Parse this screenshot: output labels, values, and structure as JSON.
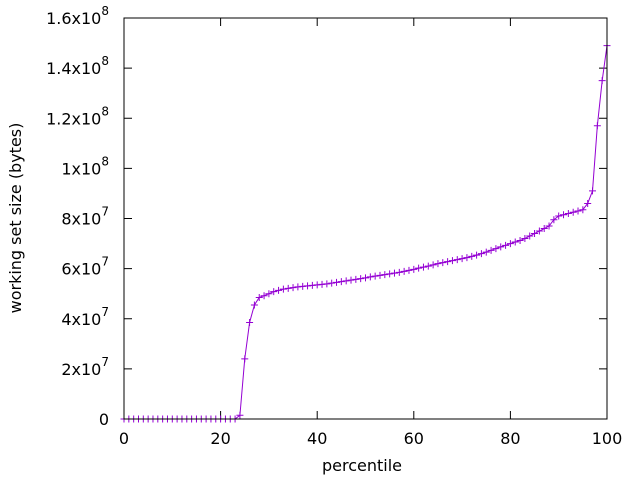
{
  "chart_data": {
    "type": "line",
    "xlabel": "percentile",
    "ylabel": "working set size (bytes)",
    "xlim": [
      0,
      100
    ],
    "ylim": [
      0,
      160000000
    ],
    "x_ticks": [
      {
        "value": 0,
        "label": "0"
      },
      {
        "value": 20,
        "label": "20"
      },
      {
        "value": 40,
        "label": "40"
      },
      {
        "value": 60,
        "label": "60"
      },
      {
        "value": 80,
        "label": "80"
      },
      {
        "value": 100,
        "label": "100"
      }
    ],
    "y_ticks": [
      {
        "value": 0,
        "mantissa": "0",
        "exponent": ""
      },
      {
        "value": 20000000,
        "mantissa": "2x10",
        "exponent": "7"
      },
      {
        "value": 40000000,
        "mantissa": "4x10",
        "exponent": "7"
      },
      {
        "value": 60000000,
        "mantissa": "6x10",
        "exponent": "7"
      },
      {
        "value": 80000000,
        "mantissa": "8x10",
        "exponent": "7"
      },
      {
        "value": 100000000,
        "mantissa": "1x10",
        "exponent": "8"
      },
      {
        "value": 120000000,
        "mantissa": "1.2x10",
        "exponent": "8"
      },
      {
        "value": 140000000,
        "mantissa": "1.4x10",
        "exponent": "8"
      },
      {
        "value": 160000000,
        "mantissa": "1.6x10",
        "exponent": "8"
      }
    ],
    "grid": false,
    "marker": "plus",
    "color": "#9400d3",
    "series": [
      {
        "x": [
          0,
          1,
          2,
          3,
          4,
          5,
          6,
          7,
          8,
          9,
          10,
          11,
          12,
          13,
          14,
          15,
          16,
          17,
          18,
          19,
          20,
          21,
          22,
          23,
          24,
          25,
          26,
          27,
          28,
          29,
          30,
          31,
          32,
          33,
          34,
          35,
          36,
          37,
          38,
          39,
          40,
          41,
          42,
          43,
          44,
          45,
          46,
          47,
          48,
          49,
          50,
          51,
          52,
          53,
          54,
          55,
          56,
          57,
          58,
          59,
          60,
          61,
          62,
          63,
          64,
          65,
          66,
          67,
          68,
          69,
          70,
          71,
          72,
          73,
          74,
          75,
          76,
          77,
          78,
          79,
          80,
          81,
          82,
          83,
          84,
          85,
          86,
          87,
          88,
          89,
          90,
          91,
          92,
          93,
          94,
          95,
          96,
          97,
          98,
          99,
          100
        ],
        "y": [
          0,
          0,
          0,
          0,
          0,
          0,
          0,
          0,
          0,
          0,
          0,
          0,
          0,
          0,
          0,
          0,
          0,
          0,
          0,
          0,
          0,
          0,
          0,
          0,
          1500000,
          24000000,
          38500000,
          45500000,
          48500000,
          49200000,
          50000000,
          50800000,
          51300000,
          51800000,
          52100000,
          52400000,
          52700000,
          52900000,
          53100000,
          53300000,
          53500000,
          53700000,
          53900000,
          54200000,
          54500000,
          54800000,
          55100000,
          55400000,
          55700000,
          56000000,
          56300000,
          56700000,
          57000000,
          57300000,
          57600000,
          57900000,
          58200000,
          58500000,
          58900000,
          59300000,
          59700000,
          60200000,
          60600000,
          61000000,
          61500000,
          62000000,
          62400000,
          62800000,
          63200000,
          63600000,
          64000000,
          64400000,
          64900000,
          65400000,
          66000000,
          66600000,
          67300000,
          68000000,
          68700000,
          69300000,
          70000000,
          70600000,
          71200000,
          72000000,
          73000000,
          74000000,
          75000000,
          76000000,
          77000000,
          79500000,
          81000000,
          81500000,
          82000000,
          82500000,
          83000000,
          83500000,
          86000000,
          91000000,
          117000000,
          135000000,
          149000000
        ]
      }
    ]
  }
}
